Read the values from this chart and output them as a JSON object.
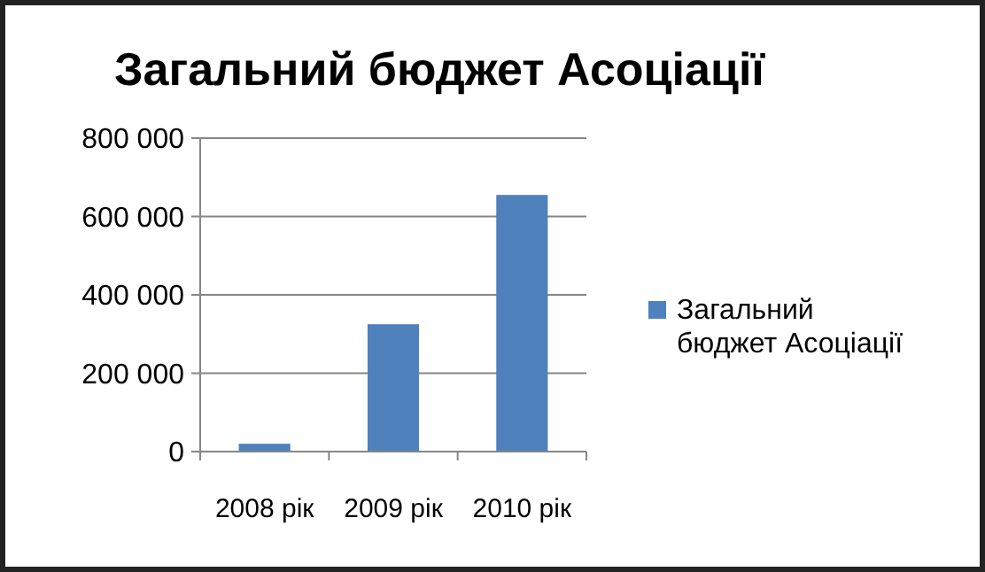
{
  "chart_data": {
    "type": "bar",
    "title": "Загальний бюджет Асоціації",
    "categories": [
      "2008 рік",
      "2009 рік",
      "2010 рік"
    ],
    "series": [
      {
        "name": "Загальний бюджет Асоціації",
        "color": "#4f81bd",
        "values": [
          20000,
          325000,
          655000
        ]
      }
    ],
    "ylim": [
      0,
      800000
    ],
    "yticks": [
      {
        "value": 0,
        "label": "0"
      },
      {
        "value": 200000,
        "label": "200 000"
      },
      {
        "value": 400000,
        "label": "400 000"
      },
      {
        "value": 600000,
        "label": "600 000"
      },
      {
        "value": 800000,
        "label": "800 000"
      }
    ],
    "grid": "y",
    "legend": "right"
  }
}
